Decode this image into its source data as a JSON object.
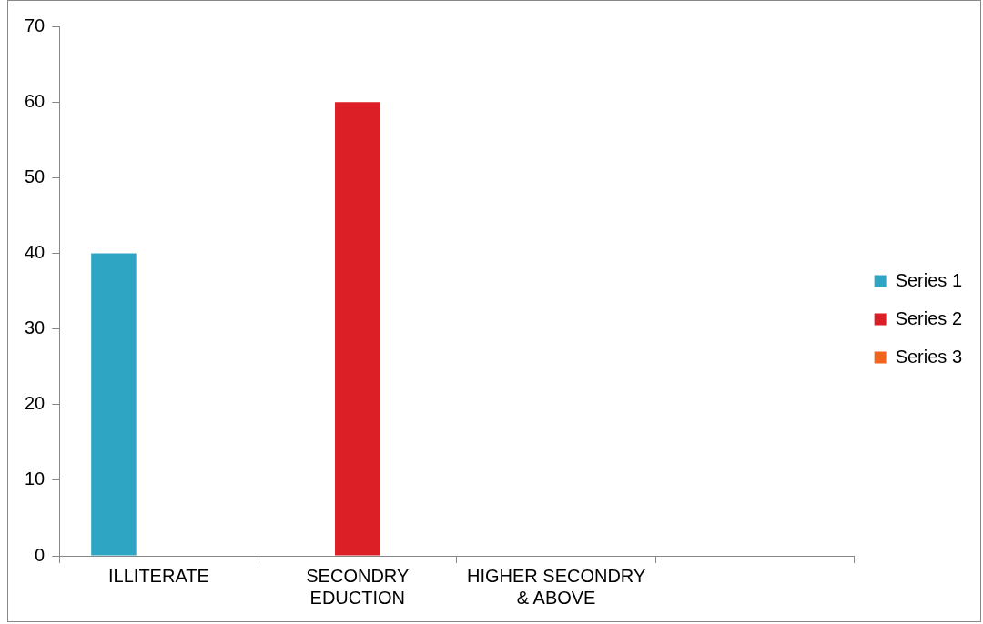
{
  "chart_data": {
    "type": "bar",
    "categories": [
      "ILLITERATE",
      "SECONDRY EDUCTION",
      "HIGHER SECONDRY & ABOVE",
      null
    ],
    "series": [
      {
        "name": "Series 1",
        "color": "#2ea5c2",
        "values": [
          40,
          null,
          null,
          null
        ]
      },
      {
        "name": "Series 2",
        "color": "#dc1f26",
        "values": [
          null,
          60,
          null,
          null
        ]
      },
      {
        "name": "Series 3",
        "color": "#f0641e",
        "values": [
          null,
          null,
          null,
          null
        ]
      }
    ],
    "ylim": [
      0,
      70
    ],
    "yticks": [
      0,
      10,
      20,
      30,
      40,
      50,
      60,
      70
    ],
    "grid": false,
    "legend": "right"
  }
}
